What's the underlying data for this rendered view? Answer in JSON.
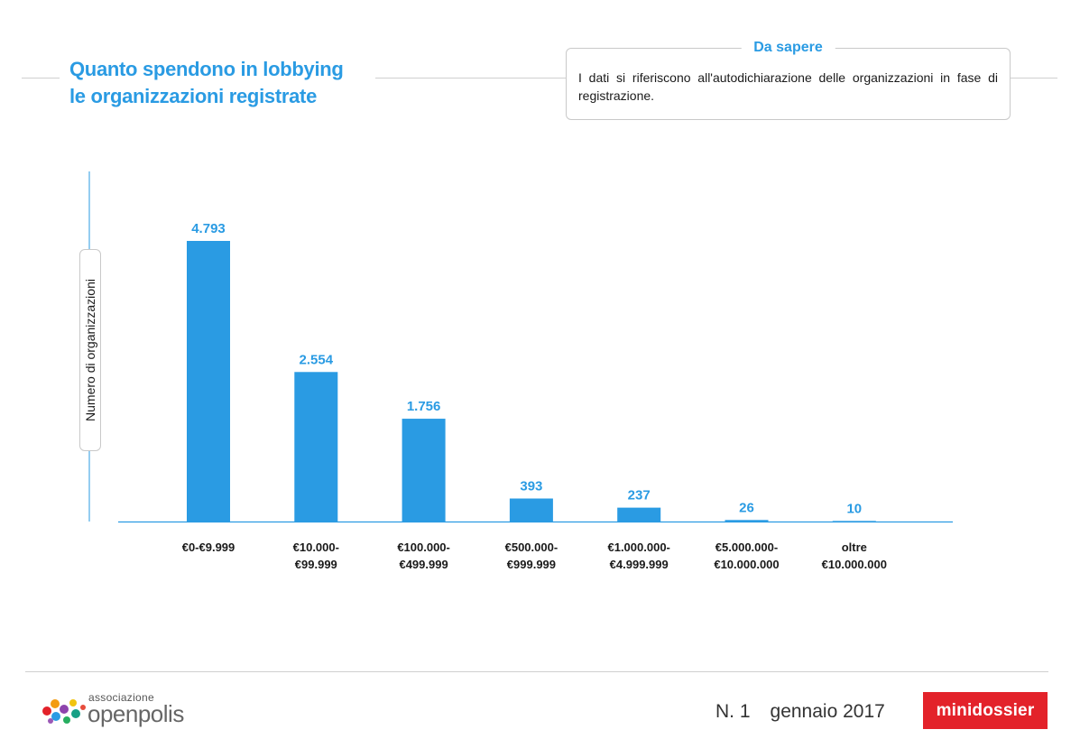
{
  "title": {
    "line1": "Quanto spendono in lobbying",
    "line2": "le organizzazioni registrate"
  },
  "info_box": {
    "title": "Da sapere",
    "text": "I dati si riferiscono all'autodichiarazione delle organizzazioni in fase di registrazione."
  },
  "chart_data": {
    "type": "bar",
    "title": "Quanto spendono in lobbying le organizzazioni registrate",
    "xlabel": "",
    "ylabel": "Numero di organizzazioni",
    "grid": false,
    "ylim": [
      0,
      5500
    ],
    "categories": [
      [
        "€0-€9.999"
      ],
      [
        "€10.000-",
        "€99.999"
      ],
      [
        "€100.000-",
        "€499.999"
      ],
      [
        "€500.000-",
        "€999.999"
      ],
      [
        "€1.000.000-",
        "€4.999.999"
      ],
      [
        "€5.000.000-",
        "€10.000.000"
      ],
      [
        "oltre",
        "€10.000.000"
      ]
    ],
    "values": [
      4793,
      2554,
      1756,
      393,
      237,
      26,
      10
    ],
    "value_labels": [
      "4.793",
      "2.554",
      "1.756",
      "393",
      "237",
      "26",
      "10"
    ],
    "bar_color": "#2a9be3"
  },
  "footer": {
    "logo_assoc": "associazione",
    "logo_name": "openpolis",
    "issue_number": "N. 1",
    "issue_date": "gennaio 2017",
    "badge": "minidossier",
    "badge_color": "#e3222a"
  }
}
